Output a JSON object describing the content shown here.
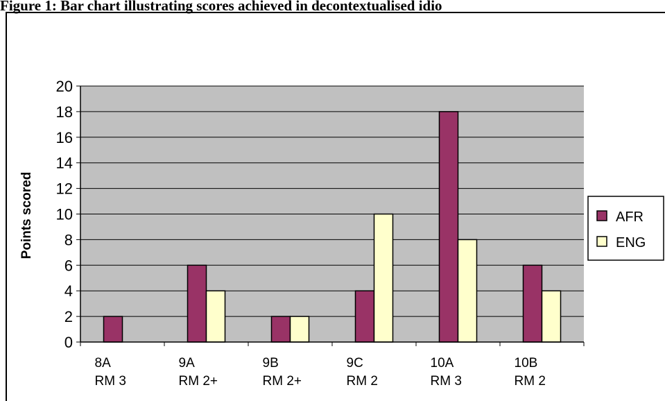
{
  "page_title": "Figure 1: Bar chart illustrating scores achieved in decontextualised idio",
  "chart_data": {
    "type": "bar",
    "title": "",
    "xlabel": "",
    "ylabel": "Points scored",
    "ylim": [
      0,
      20
    ],
    "yticks": [
      0,
      2,
      4,
      6,
      8,
      10,
      12,
      14,
      16,
      18,
      20
    ],
    "grid": true,
    "legend_position": "right",
    "categories": [
      [
        "8A",
        "RM 3"
      ],
      [
        "9A",
        "RM 2+"
      ],
      [
        "9B",
        "RM 2+"
      ],
      [
        "9C",
        "RM 2"
      ],
      [
        "10A",
        "RM 3"
      ],
      [
        "10B",
        "RM 2"
      ]
    ],
    "series": [
      {
        "name": "AFR",
        "color": "#993366",
        "values": [
          2,
          6,
          2,
          4,
          18,
          6
        ]
      },
      {
        "name": "ENG",
        "color": "#ffffcc",
        "values": [
          0,
          4,
          2,
          10,
          8,
          4
        ]
      }
    ],
    "plot_background": "#c0c0c0"
  }
}
